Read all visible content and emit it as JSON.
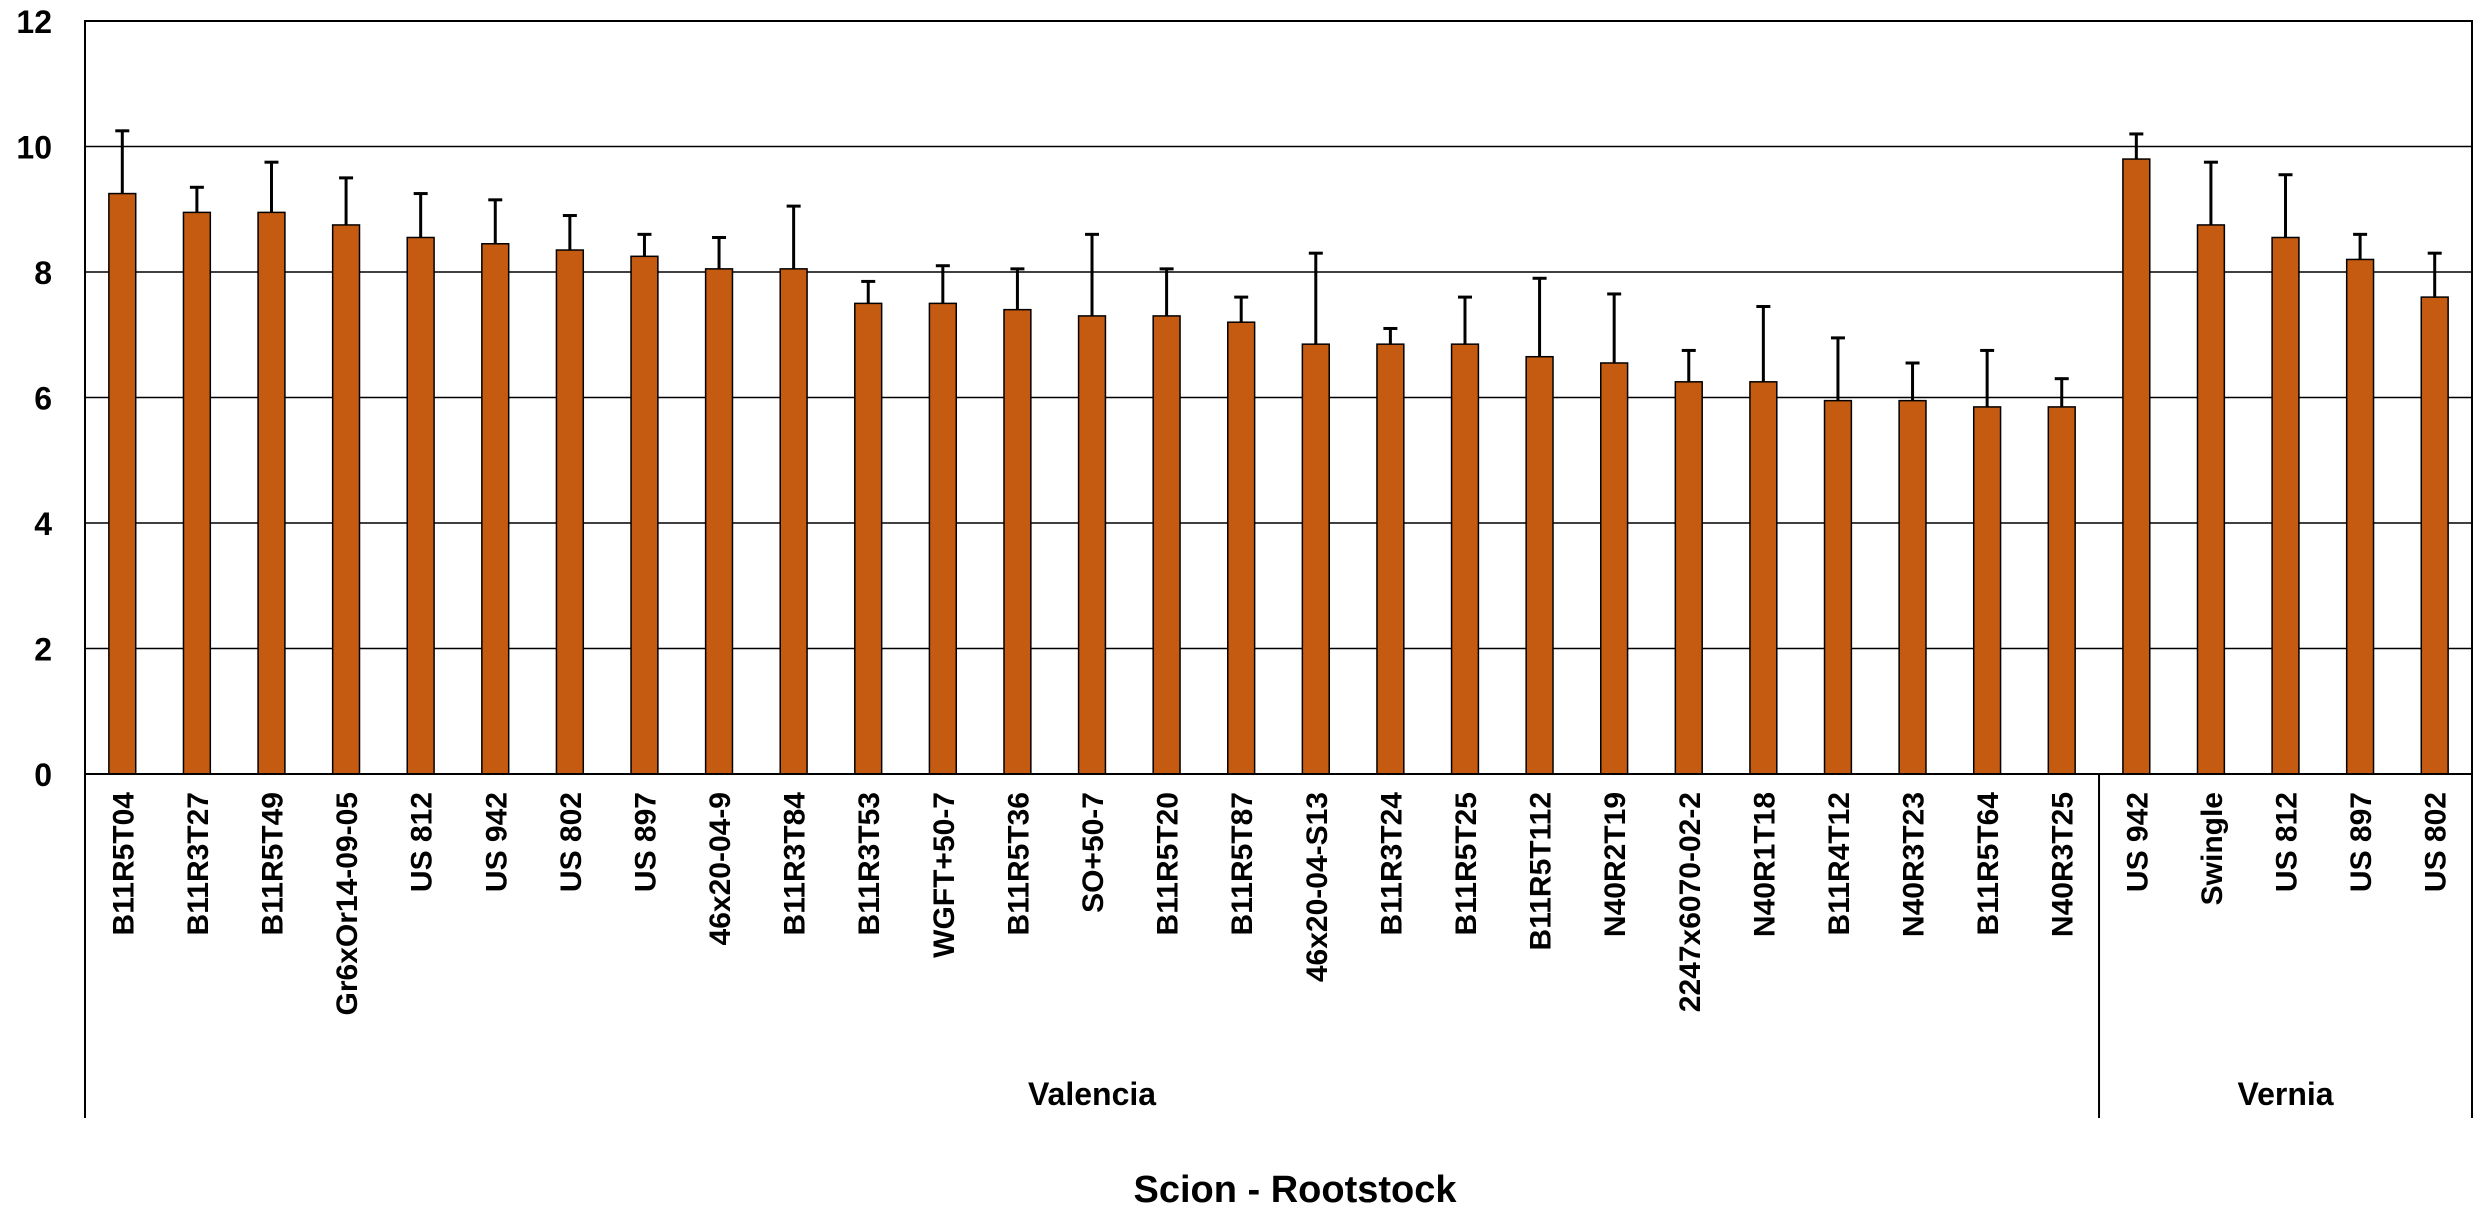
{
  "chart_data": {
    "type": "bar",
    "xlabel": "Scion - Rootstock",
    "ylabel": "",
    "ylim": [
      0,
      12
    ],
    "yticks": [
      0,
      2,
      4,
      6,
      8,
      10,
      12
    ],
    "grid": "horizontal",
    "bar_color": "#C55A11",
    "groups": [
      {
        "name": "Valencia",
        "categories": [
          "B11R5T04",
          "B11R3T27",
          "B11R5T49",
          "Gr6xOr14-09-05",
          "US 812",
          "US 942",
          "US 802",
          "US 897",
          "46x20-04-9",
          "B11R3T84",
          "B11R3T53",
          "WGFT+50-7",
          "B11R5T36",
          "SO+50-7",
          "B11R5T20",
          "B11R5T87",
          "46x20-04-S13",
          "B11R3T24",
          "B11R5T25",
          "B11R5T112",
          "N40R2T19",
          "2247x6070-02-2",
          "N40R1T18",
          "B11R4T12",
          "N40R3T23",
          "B11R5T64",
          "N40R3T25"
        ],
        "values": [
          9.25,
          8.95,
          8.95,
          8.75,
          8.55,
          8.45,
          8.35,
          8.25,
          8.05,
          8.05,
          7.5,
          7.5,
          7.4,
          7.3,
          7.3,
          7.2,
          6.85,
          6.85,
          6.85,
          6.65,
          6.55,
          6.25,
          6.25,
          5.95,
          5.95,
          5.85,
          5.85
        ],
        "error_upper": [
          10.25,
          9.35,
          9.75,
          9.5,
          9.25,
          9.15,
          8.9,
          8.6,
          8.55,
          9.05,
          7.85,
          8.1,
          8.05,
          8.6,
          8.05,
          7.6,
          8.3,
          7.1,
          7.6,
          7.9,
          7.65,
          6.75,
          7.45,
          6.95,
          6.55,
          6.75,
          6.3
        ]
      },
      {
        "name": "Vernia",
        "categories": [
          "US 942",
          "Swingle",
          "US 812",
          "US 897",
          "US 802"
        ],
        "values": [
          9.8,
          8.75,
          8.55,
          8.2,
          7.6
        ],
        "error_upper": [
          10.2,
          9.75,
          9.55,
          8.6,
          8.3
        ]
      }
    ]
  }
}
